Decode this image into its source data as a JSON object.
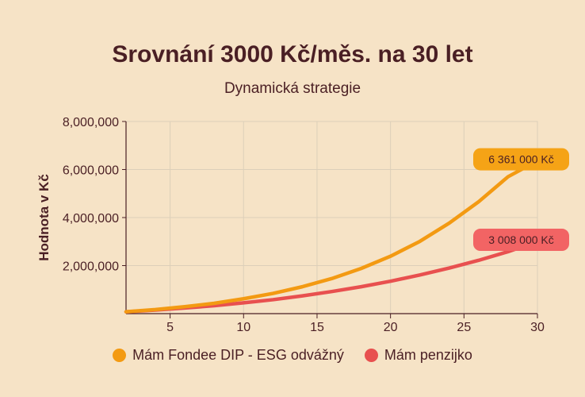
{
  "chart_data": {
    "type": "line",
    "title": "Srovnání 3000 Kč/měs. na 30 let",
    "subtitle": "Dynamická strategie",
    "xlabel": "",
    "ylabel": "Hodnota v Kč",
    "xlim": [
      2,
      30
    ],
    "ylim": [
      0,
      8000000
    ],
    "x_ticks": [
      5,
      10,
      15,
      20,
      25,
      30
    ],
    "x_tick_labels": [
      "5",
      "10",
      "15",
      "20",
      "25",
      "30"
    ],
    "y_ticks": [
      2000000,
      4000000,
      6000000,
      8000000
    ],
    "y_tick_labels": [
      "2,000,000",
      "4,000,000",
      "6,000,000",
      "8,000,000"
    ],
    "grid": true,
    "legend_position": "bottom",
    "series": [
      {
        "name": "Mám Fondee DIP - ESG odvážný",
        "color": "#f39a12",
        "label_bg": "#f5a316",
        "end_label": "6 361 000 Kč",
        "x": [
          2,
          4,
          6,
          8,
          10,
          12,
          14,
          16,
          18,
          20,
          22,
          24,
          26,
          28,
          30
        ],
        "values": [
          80000,
          170000,
          290000,
          430000,
          620000,
          840000,
          1120000,
          1460000,
          1880000,
          2390000,
          3010000,
          3770000,
          4660000,
          5700000,
          6361000
        ]
      },
      {
        "name": "Mám penzijko",
        "color": "#e8504f",
        "label_bg": "#f26464",
        "end_label": "3 008 000 Kč",
        "x": [
          2,
          4,
          6,
          8,
          10,
          12,
          14,
          16,
          18,
          20,
          22,
          24,
          26,
          28,
          30
        ],
        "values": [
          75000,
          150000,
          235000,
          330000,
          450000,
          580000,
          740000,
          920000,
          1120000,
          1350000,
          1610000,
          1900000,
          2220000,
          2580000,
          3008000
        ]
      }
    ]
  }
}
